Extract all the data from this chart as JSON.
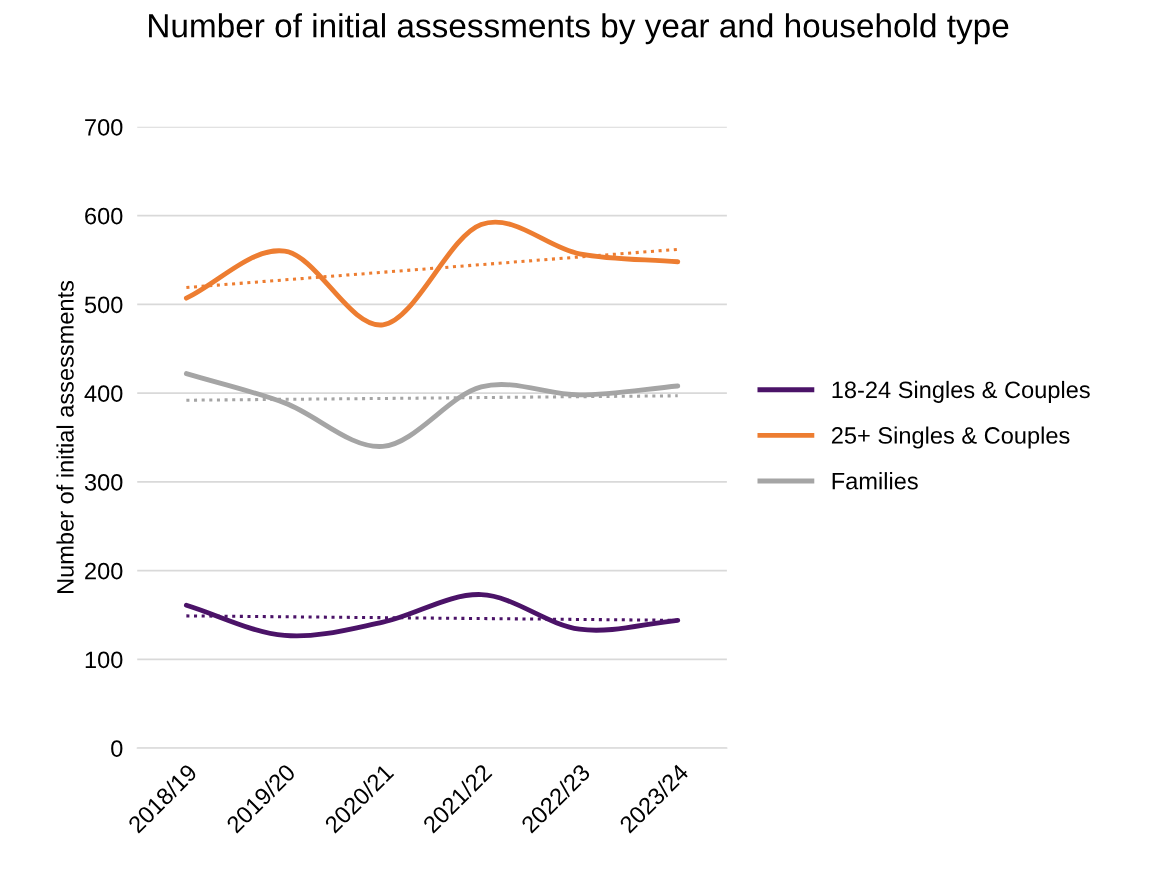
{
  "chart_data": {
    "type": "line",
    "title": "Number of initial assessments by year and household type",
    "ylabel": "Number of initial assessments",
    "categories": [
      "2018/19",
      "2019/20",
      "2020/21",
      "2021/22",
      "2022/23",
      "2023/24"
    ],
    "series": [
      {
        "name": "18-24 Singles & Couples",
        "color": "#4b1368",
        "values": [
          161,
          127,
          142,
          173,
          134,
          144
        ]
      },
      {
        "name": "25+ Singles & Couples",
        "color": "#ed7d31",
        "values": [
          507,
          560,
          477,
          590,
          557,
          548
        ]
      },
      {
        "name": "Families",
        "color": "#a5a5a5",
        "values": [
          422,
          389,
          340,
          407,
          398,
          408
        ]
      },
      {
        "type": "line",
        "line_style": "dotted",
        "color": "#4b1368",
        "x": [
          "2018/19",
          "2023/24"
        ],
        "values": [
          149,
          144
        ]
      },
      {
        "type": "line",
        "line_style": "dotted",
        "color": "#ed7d31",
        "x": [
          "2018/19",
          "2023/24"
        ],
        "values": [
          519,
          562
        ]
      },
      {
        "type": "line",
        "line_style": "dotted",
        "color": "#a5a5a5",
        "x": [
          "2018/19",
          "2023/24"
        ],
        "values": [
          392,
          397
        ]
      }
    ],
    "ylim": [
      0,
      700
    ],
    "yticks": [
      0,
      100,
      200,
      300,
      400,
      500,
      600,
      700
    ],
    "grid": "y",
    "legend": "right",
    "marker": "none",
    "line_style": "solid"
  }
}
